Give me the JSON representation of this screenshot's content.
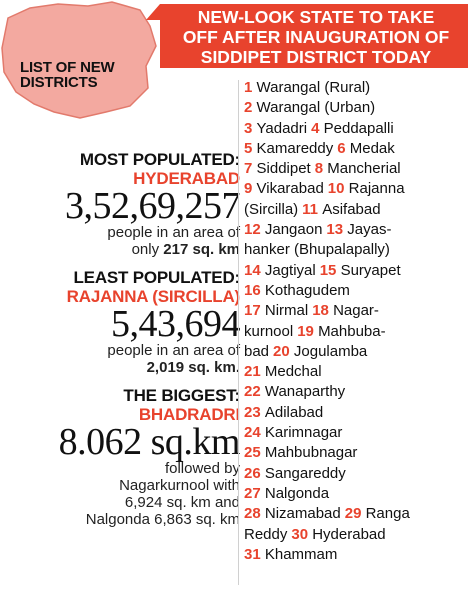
{
  "banner": {
    "lines": [
      "NEW-LOOK STATE TO TAKE",
      "OFF AFTER INAUGURATION OF",
      "SIDDIPET DISTRICT TODAY"
    ]
  },
  "list_label": [
    "LIST OF NEW",
    "DISTRICTS"
  ],
  "colors": {
    "accent": "#e8432d",
    "map_fill": "#f3a9a0",
    "text": "#1a1a1a"
  },
  "stats": {
    "most_populated": {
      "heading": "MOST POPULATED:",
      "name": "HYDERABAD",
      "number": "3,52,69,257",
      "line1": "people in an area of",
      "line2_pre": "only ",
      "line2_bold": "217 sq. km"
    },
    "least_populated": {
      "heading": "LEAST POPULATED:",
      "name": "RAJANNA (SIRCILLA)",
      "number": "5,43,694",
      "line1": "people in an area of",
      "line2_bold": "2,019 sq. km."
    },
    "biggest": {
      "heading": "THE BIGGEST:",
      "name": "BHADRADRI",
      "number": "8.062 sq.km",
      "lines": [
        "followed by",
        "Nagarkurnool with",
        "6,924 sq. km and",
        "Nalgonda 6,863 sq. km"
      ]
    }
  },
  "district_lines": [
    [
      {
        "n": "1",
        "t": "Warangal (Rural)"
      }
    ],
    [
      {
        "n": "2",
        "t": " Warangal (Urban)"
      }
    ],
    [
      {
        "n": "3",
        "t": "Yadadri"
      },
      {
        "n": "4",
        "t": "Peddapalli"
      }
    ],
    [
      {
        "n": "5",
        "t": "Kamareddy"
      },
      {
        "n": "6",
        "t": "Medak"
      }
    ],
    [
      {
        "n": "7",
        "t": "Siddipet"
      },
      {
        "n": "8",
        "t": "Mancherial"
      }
    ],
    [
      {
        "n": "9",
        "t": "Vikarabad"
      },
      {
        "n": "10",
        "t": "Rajanna"
      }
    ],
    [
      {
        "n": "",
        "t": "(Sircilla)"
      },
      {
        "n": "11",
        "t": "Asifabad"
      }
    ],
    [
      {
        "n": "12",
        "t": "Jangaon"
      },
      {
        "n": "13",
        "t": "Jayas-"
      }
    ],
    [
      {
        "n": "",
        "t": "hanker (Bhupalapally)"
      }
    ],
    [
      {
        "n": "14",
        "t": "Jagtiyal"
      },
      {
        "n": "15",
        "t": "Suryapet"
      }
    ],
    [
      {
        "n": "16",
        "t": "Kothagudem"
      }
    ],
    [
      {
        "n": "17",
        "t": "Nirmal"
      },
      {
        "n": "18",
        "t": "Nagar-"
      }
    ],
    [
      {
        "n": "",
        "t": "kurnool"
      },
      {
        "n": "19",
        "t": "Mahbuba-"
      }
    ],
    [
      {
        "n": "",
        "t": "bad"
      },
      {
        "n": "20",
        "t": "Jogulamba"
      }
    ],
    [
      {
        "n": "21",
        "t": "Medchal"
      }
    ],
    [
      {
        "n": "22",
        "t": "Wanaparthy"
      }
    ],
    [
      {
        "n": "23",
        "t": "Adilabad"
      }
    ],
    [
      {
        "n": "24",
        "t": " Karimnagar"
      }
    ],
    [
      {
        "n": "25",
        "t": "Mahbubnagar"
      }
    ],
    [
      {
        "n": "26",
        "t": "Sangareddy"
      }
    ],
    [
      {
        "n": "27",
        "t": "Nalgonda"
      }
    ],
    [
      {
        "n": "28",
        "t": "Nizamabad"
      },
      {
        "n": "29",
        "t": "Ranga"
      }
    ],
    [
      {
        "n": "",
        "t": "Reddy"
      },
      {
        "n": "30",
        "t": "Hyderabad"
      }
    ],
    [
      {
        "n": "31",
        "t": "Khammam"
      }
    ]
  ]
}
